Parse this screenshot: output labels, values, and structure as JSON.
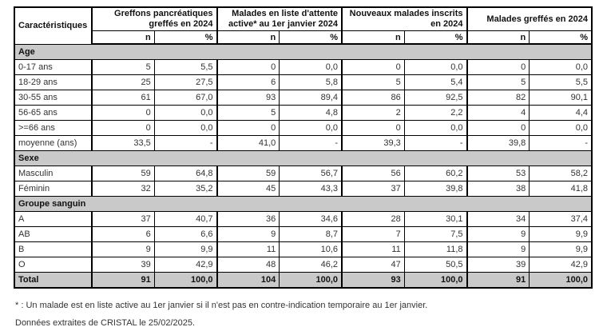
{
  "table": {
    "corner_header": "Caractéristiques",
    "sub_n": "n",
    "sub_pct": "%",
    "section_color": "#c9c9c9",
    "groups": [
      {
        "line1": "Greffons pancréatiques",
        "line2": "greffés en 2024"
      },
      {
        "line1": "Malades en liste d'attente",
        "line2": "active* au 1er janvier 2024"
      },
      {
        "line1": "Nouveaux malades inscrits",
        "line2": "en 2024"
      },
      {
        "line1": "Malades greffés en 2024",
        "line2": ""
      }
    ],
    "sections": [
      {
        "label": "Age",
        "rows": [
          {
            "label": "0-17 ans",
            "values": [
              "5",
              "5,5",
              "0",
              "0,0",
              "0",
              "0,0",
              "0",
              "0,0"
            ]
          },
          {
            "label": "18-29 ans",
            "values": [
              "25",
              "27,5",
              "6",
              "5,8",
              "5",
              "5,4",
              "5",
              "5,5"
            ]
          },
          {
            "label": "30-55 ans",
            "values": [
              "61",
              "67,0",
              "93",
              "89,4",
              "86",
              "92,5",
              "82",
              "90,1"
            ]
          },
          {
            "label": "56-65 ans",
            "values": [
              "0",
              "0,0",
              "5",
              "4,8",
              "2",
              "2,2",
              "4",
              "4,4"
            ]
          },
          {
            "label": ">=66 ans",
            "values": [
              "0",
              "0,0",
              "0",
              "0,0",
              "0",
              "0,0",
              "0",
              "0,0"
            ]
          },
          {
            "label": "moyenne (ans)",
            "values": [
              "33,5",
              "-",
              "41,0",
              "-",
              "39,3",
              "-",
              "39,8",
              "-"
            ]
          }
        ]
      },
      {
        "label": "Sexe",
        "rows": [
          {
            "label": "Masculin",
            "values": [
              "59",
              "64,8",
              "59",
              "56,7",
              "56",
              "60,2",
              "53",
              "58,2"
            ]
          },
          {
            "label": "Féminin",
            "values": [
              "32",
              "35,2",
              "45",
              "43,3",
              "37",
              "39,8",
              "38",
              "41,8"
            ]
          }
        ]
      },
      {
        "label": "Groupe sanguin",
        "rows": [
          {
            "label": "A",
            "values": [
              "37",
              "40,7",
              "36",
              "34,6",
              "28",
              "30,1",
              "34",
              "37,4"
            ]
          },
          {
            "label": "AB",
            "values": [
              "6",
              "6,6",
              "9",
              "8,7",
              "7",
              "7,5",
              "9",
              "9,9"
            ]
          },
          {
            "label": "B",
            "values": [
              "9",
              "9,9",
              "11",
              "10,6",
              "11",
              "11,8",
              "9",
              "9,9"
            ]
          },
          {
            "label": "O",
            "values": [
              "39",
              "42,9",
              "48",
              "46,2",
              "47",
              "50,5",
              "39",
              "42,9"
            ]
          }
        ]
      }
    ],
    "total_row": {
      "label": "Total",
      "values": [
        "91",
        "100,0",
        "104",
        "100,0",
        "93",
        "100,0",
        "91",
        "100,0"
      ]
    }
  },
  "footnotes": [
    "* : Un malade est en liste active au 1er janvier si il n'est pas en contre-indication temporaire au 1er janvier.",
    "Données extraites de CRISTAL le 25/02/2025."
  ]
}
